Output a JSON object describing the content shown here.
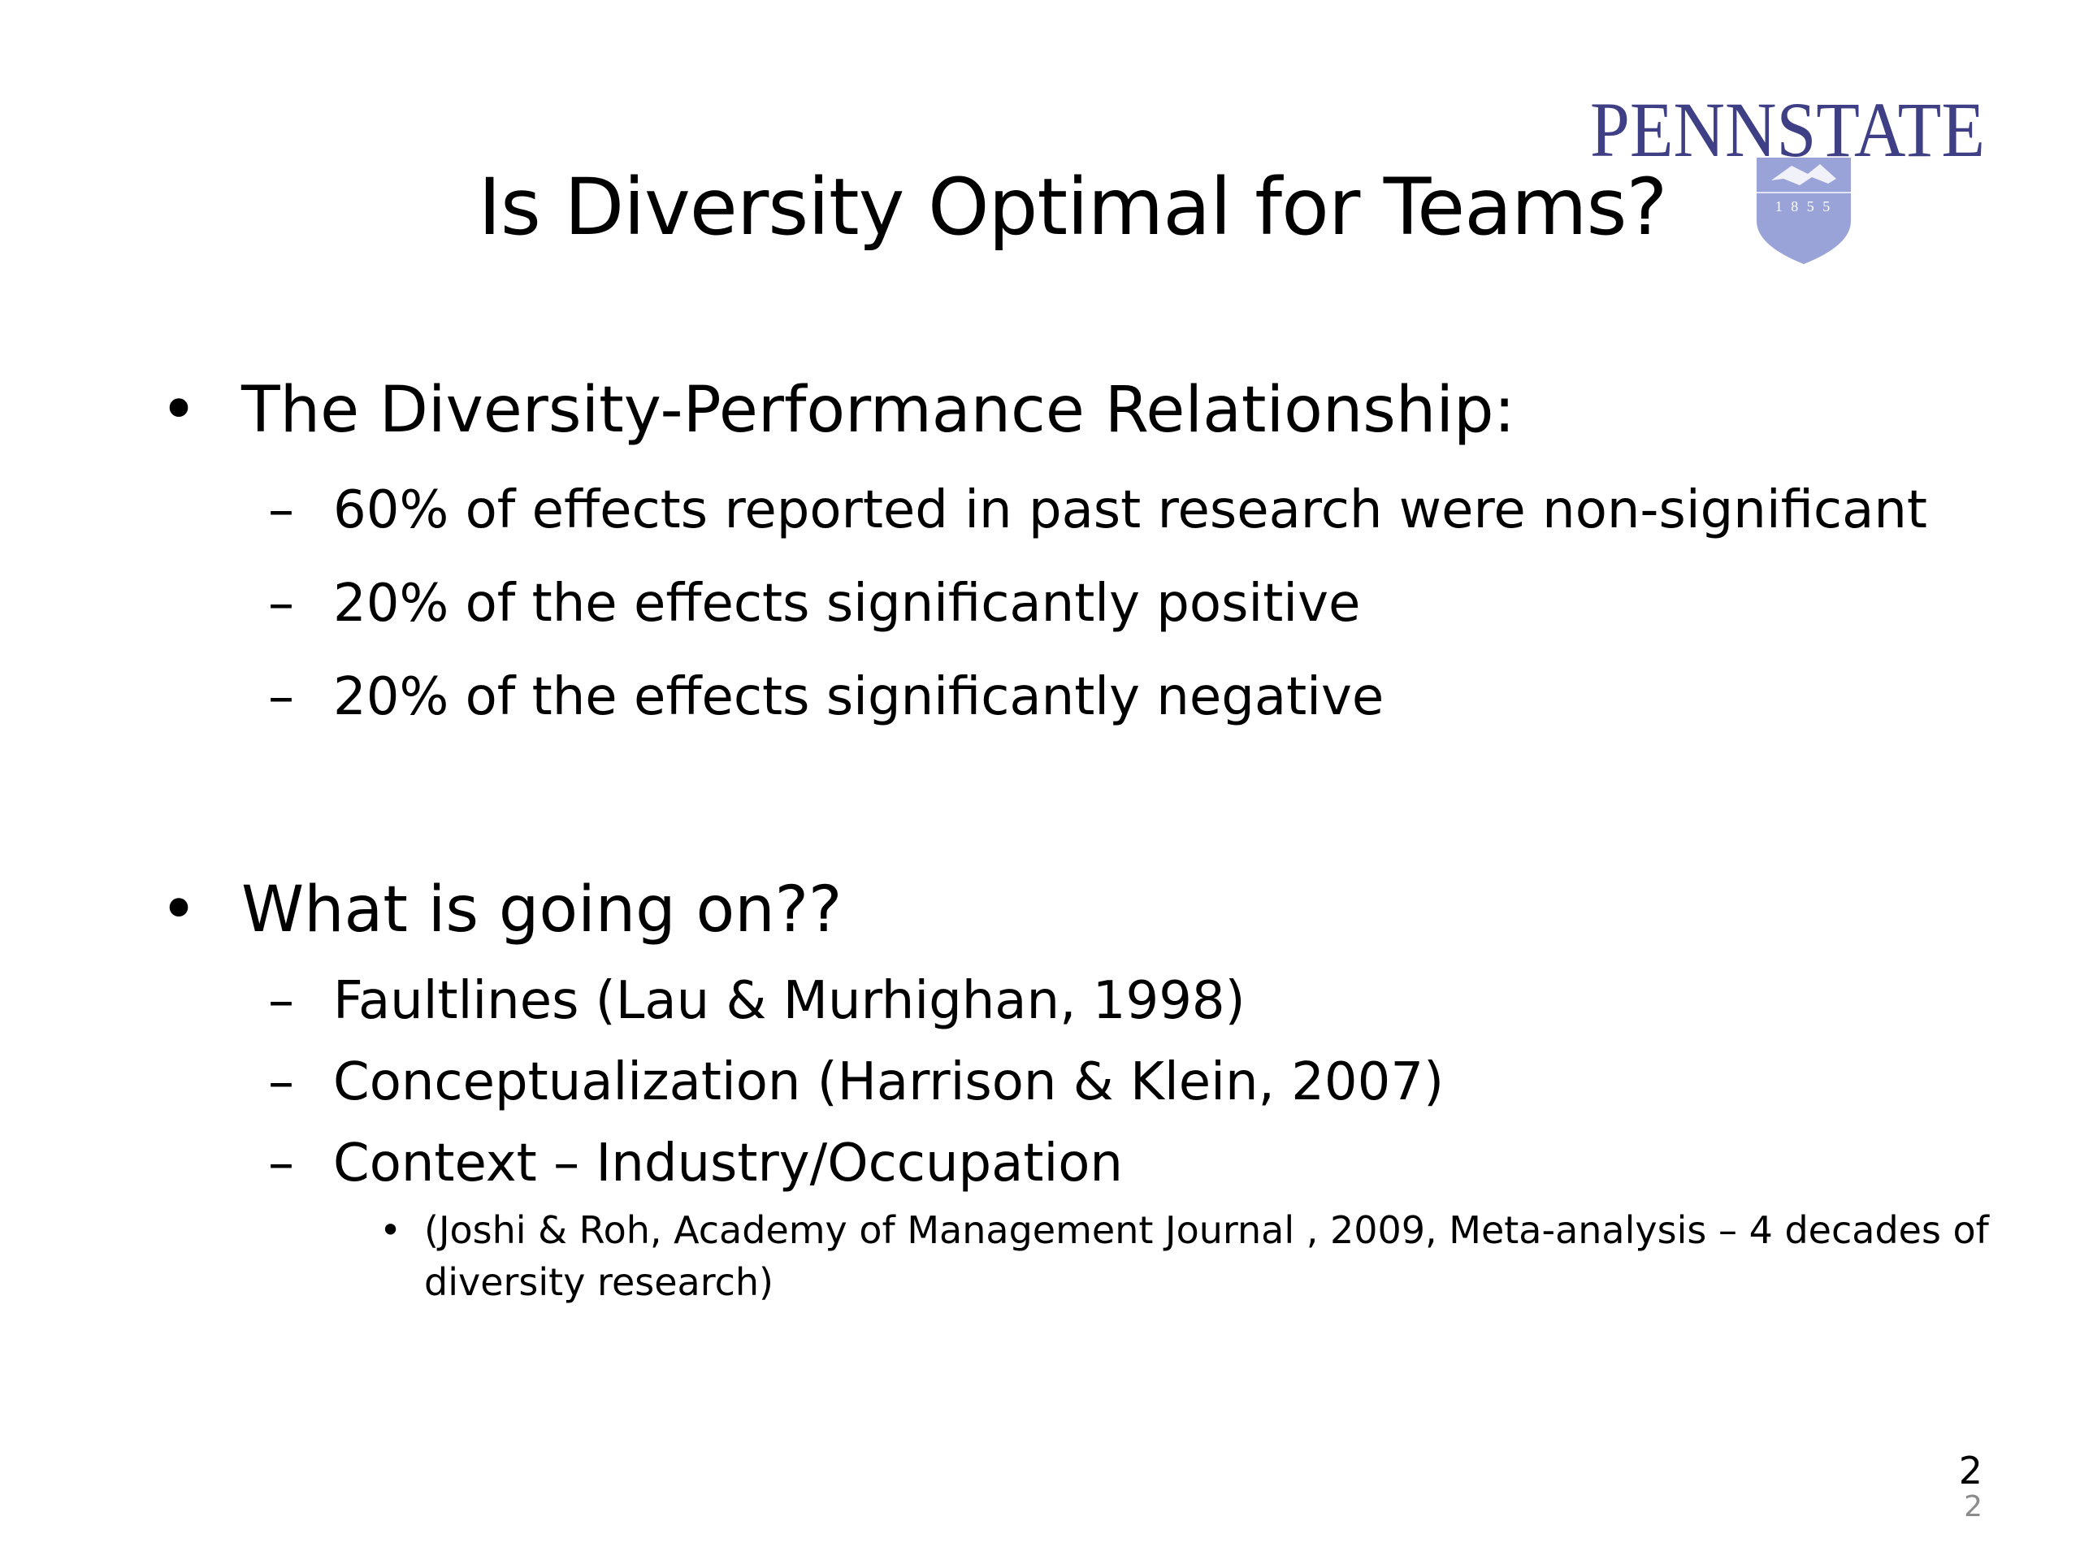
{
  "slide": {
    "title": "Is Diversity Optimal for Teams?",
    "logo": {
      "text": "PENNSTATE",
      "year": "1 8 5 5",
      "color": "#3f3f86",
      "shield_color": "#9aa3d8"
    },
    "bullet_symbol": "•",
    "dash_symbol": "–",
    "sections": [
      {
        "heading": "The Diversity-Performance Relationship:",
        "items": [
          "60% of effects reported in past research were non-significant",
          "20% of the effects significantly positive",
          "20% of the effects significantly negative"
        ]
      },
      {
        "heading": "What is going on??",
        "items": [
          "Faultlines (Lau & Murhighan, 1998)",
          "Conceptualization (Harrison & Klein, 2007)",
          "Context – Industry/Occupation"
        ],
        "subitems": [
          "(Joshi & Roh, Academy of Management Journal , 2009, Meta-analysis – 4 decades of",
          "diversity research)"
        ]
      }
    ],
    "page_number": "2",
    "page_number_small": "2"
  }
}
